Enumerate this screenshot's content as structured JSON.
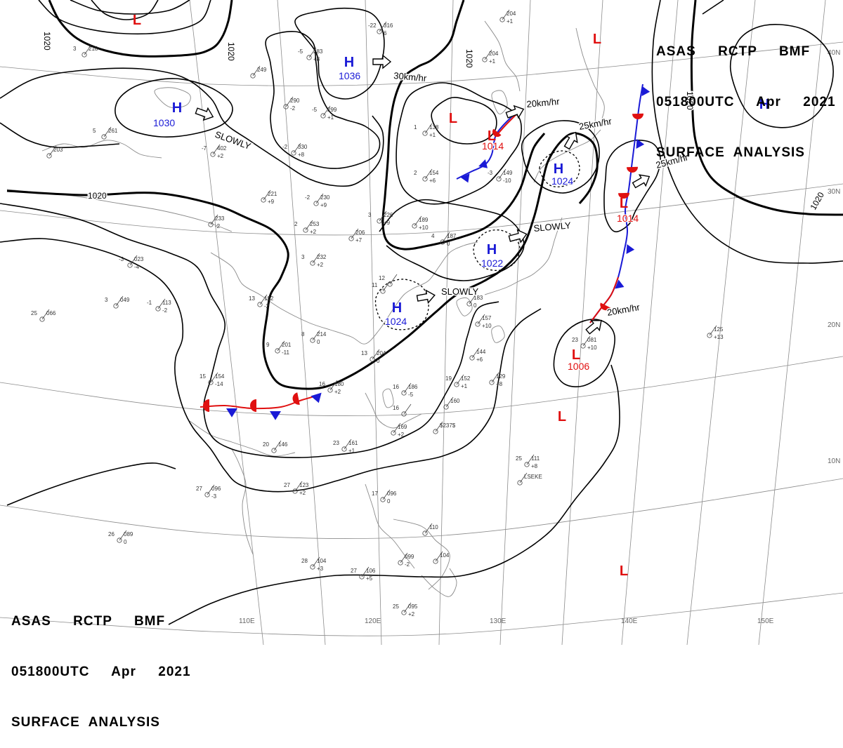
{
  "header": {
    "line1": "ASAS     RCTP     BMF",
    "line2": "051800UTC     Apr     2021",
    "line3": "SURFACE  ANALYSIS"
  },
  "colors": {
    "high": "#1a1ad6",
    "low": "#e01010",
    "warm_front": "#e01010",
    "cold_front": "#1a1ad6",
    "isobar": "#000000",
    "graticule": "#8c8c8c",
    "coast": "#8a8a8a"
  },
  "longitude_labels": [
    "110E",
    "120E",
    "130E",
    "140E",
    "150E"
  ],
  "latitude_labels": [
    "40N",
    "30N",
    "20N",
    "10N"
  ],
  "isobar_labels": [
    "1020",
    "1020",
    "1020",
    "1020",
    "1020",
    "1020"
  ],
  "pressure_centers": [
    {
      "type": "H",
      "value": "1036"
    },
    {
      "type": "H",
      "value": "1030"
    },
    {
      "type": "H",
      "value": "1024"
    },
    {
      "type": "H",
      "value": "1022"
    },
    {
      "type": "H",
      "value": "1024"
    },
    {
      "type": "H",
      "value": ""
    },
    {
      "type": "L",
      "value": "1014"
    },
    {
      "type": "L",
      "value": "1014"
    },
    {
      "type": "L",
      "value": "1006"
    },
    {
      "type": "L",
      "value": ""
    },
    {
      "type": "L",
      "value": ""
    },
    {
      "type": "L",
      "value": ""
    },
    {
      "type": "L",
      "value": ""
    }
  ],
  "motions": [
    "30km/hr",
    "SLOWLY",
    "20km/hr",
    "25km/hr",
    "25km/hr",
    "SLOWLY",
    "SLOWLY",
    "20km/hr"
  ],
  "stations": [
    {
      "t": "3",
      "p": "218",
      "d": ""
    },
    {
      "t": "-22",
      "p": "316",
      "d": "6"
    },
    {
      "t": "-5",
      "p": "283",
      "d": "+8"
    },
    {
      "t": "",
      "p": "249",
      "d": ""
    },
    {
      "t": "",
      "p": "290",
      "d": "-2"
    },
    {
      "t": "-5",
      "p": "299",
      "d": "+1"
    },
    {
      "t": "-2",
      "p": "330",
      "d": "+8"
    },
    {
      "t": "-7",
      "p": "402",
      "d": "+2"
    },
    {
      "t": "5",
      "p": "261",
      "d": ""
    },
    {
      "t": "",
      "p": "203",
      "d": ""
    },
    {
      "t": "",
      "p": "204",
      "d": "+1"
    },
    {
      "t": "",
      "p": "204",
      "d": "+1"
    },
    {
      "t": "1",
      "p": "138",
      "d": "+1"
    },
    {
      "t": "2",
      "p": "154",
      "d": "+6"
    },
    {
      "t": "-3",
      "p": "149",
      "d": "-10"
    },
    {
      "t": "",
      "p": "221",
      "d": "+9"
    },
    {
      "t": "-2",
      "p": "230",
      "d": "+9"
    },
    {
      "t": "2",
      "p": "253",
      "d": "+2"
    },
    {
      "t": "",
      "p": "206",
      "d": "+7"
    },
    {
      "t": "3",
      "p": "226",
      "d": "+9"
    },
    {
      "t": "",
      "p": "189",
      "d": "+10"
    },
    {
      "t": "",
      "p": "233",
      "d": "-2"
    },
    {
      "t": "-3",
      "p": "023",
      "d": "-4"
    },
    {
      "t": "3",
      "p": "232",
      "d": "+2"
    },
    {
      "t": "4",
      "p": "187",
      "d": "0"
    },
    {
      "t": "-1",
      "p": "113",
      "d": "-2"
    },
    {
      "t": "3",
      "p": "049",
      "d": ""
    },
    {
      "t": "13",
      "p": "192",
      "d": "-2"
    },
    {
      "t": "25",
      "p": "066",
      "d": ""
    },
    {
      "t": "8",
      "p": "214",
      "d": "0"
    },
    {
      "t": "9",
      "p": "201",
      "d": "-11"
    },
    {
      "t": "13",
      "p": "204",
      "d": "0"
    },
    {
      "t": "15",
      "p": "154",
      "d": "-14"
    },
    {
      "t": "16",
      "p": "180",
      "d": "+2"
    },
    {
      "t": "16",
      "p": "186",
      "d": "-5"
    },
    {
      "t": "19",
      "p": "152",
      "d": "+1"
    },
    {
      "t": "",
      "p": "144",
      "d": "+6"
    },
    {
      "t": "",
      "p": "129",
      "d": "+8"
    },
    {
      "t": "",
      "p": "157",
      "d": "+10"
    },
    {
      "t": "",
      "p": "183",
      "d": "0"
    },
    {
      "t": "",
      "p": "160",
      "d": ""
    },
    {
      "t": "",
      "p": "169",
      "d": "+2"
    },
    {
      "t": "",
      "p": "$237$",
      "d": ""
    },
    {
      "t": "23",
      "p": "161",
      "d": "+1"
    },
    {
      "t": "20",
      "p": "146",
      "d": ""
    },
    {
      "t": "27",
      "p": "123",
      "d": "+2"
    },
    {
      "t": "27",
      "p": "096",
      "d": "-3"
    },
    {
      "t": "17",
      "p": "096",
      "d": "0"
    },
    {
      "t": "26",
      "p": "089",
      "d": "0"
    },
    {
      "t": "28",
      "p": "104",
      "d": "+3"
    },
    {
      "t": "27",
      "p": "106",
      "d": "+5"
    },
    {
      "t": "25",
      "p": "095",
      "d": "+2"
    },
    {
      "t": "",
      "p": "099",
      "d": "-2"
    },
    {
      "t": "",
      "p": "104",
      "d": ""
    },
    {
      "t": "",
      "p": "110",
      "d": ""
    },
    {
      "t": "25",
      "p": "111",
      "d": "+8"
    },
    {
      "t": "",
      "p": "125",
      "d": "+13"
    },
    {
      "t": "23",
      "p": "081",
      "d": "+10"
    },
    {
      "t": "",
      "p": "LSEKE",
      "d": ""
    },
    {
      "t": "12",
      "p": "",
      "d": ""
    },
    {
      "t": "11",
      "p": "",
      "d": ""
    },
    {
      "t": "16",
      "p": "",
      "d": ""
    }
  ]
}
